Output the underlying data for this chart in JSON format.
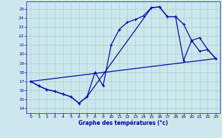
{
  "bg_color": "#cce8ec",
  "grid_color": "#aacccc",
  "line_color": "#0000aa",
  "xlabel": "Graphe des températures (°c)",
  "xlabel_color": "#0000aa",
  "ylim": [
    13.5,
    25.8
  ],
  "xlim": [
    -0.5,
    23.5
  ],
  "yticks": [
    14,
    15,
    16,
    17,
    18,
    19,
    20,
    21,
    22,
    23,
    24,
    25
  ],
  "xticks": [
    0,
    1,
    2,
    3,
    4,
    5,
    6,
    7,
    8,
    9,
    10,
    11,
    12,
    13,
    14,
    15,
    16,
    17,
    18,
    19,
    20,
    21,
    22,
    23
  ],
  "curve1_x": [
    0,
    1,
    2,
    3,
    4,
    5,
    6,
    7,
    8,
    9,
    10,
    11,
    12,
    13,
    14,
    15,
    16,
    17,
    18,
    19,
    20,
    21,
    22,
    23
  ],
  "curve1_y": [
    17.0,
    16.5,
    16.1,
    15.9,
    15.6,
    15.3,
    14.6,
    15.3,
    18.0,
    16.5,
    21.0,
    22.7,
    23.5,
    23.8,
    24.2,
    25.1,
    25.2,
    24.1,
    24.1,
    23.3,
    21.5,
    20.3,
    20.5,
    19.5
  ],
  "curve2_x": [
    0,
    23
  ],
  "curve2_y": [
    17.0,
    19.5
  ],
  "curve3_x": [
    0,
    1,
    2,
    3,
    4,
    5,
    6,
    7,
    15,
    16,
    17,
    18,
    19,
    20,
    21,
    22,
    23
  ],
  "curve3_y": [
    17.0,
    16.5,
    16.1,
    15.9,
    15.6,
    15.3,
    14.6,
    15.3,
    25.1,
    25.2,
    24.1,
    24.1,
    19.3,
    21.5,
    21.8,
    20.5,
    19.5
  ]
}
